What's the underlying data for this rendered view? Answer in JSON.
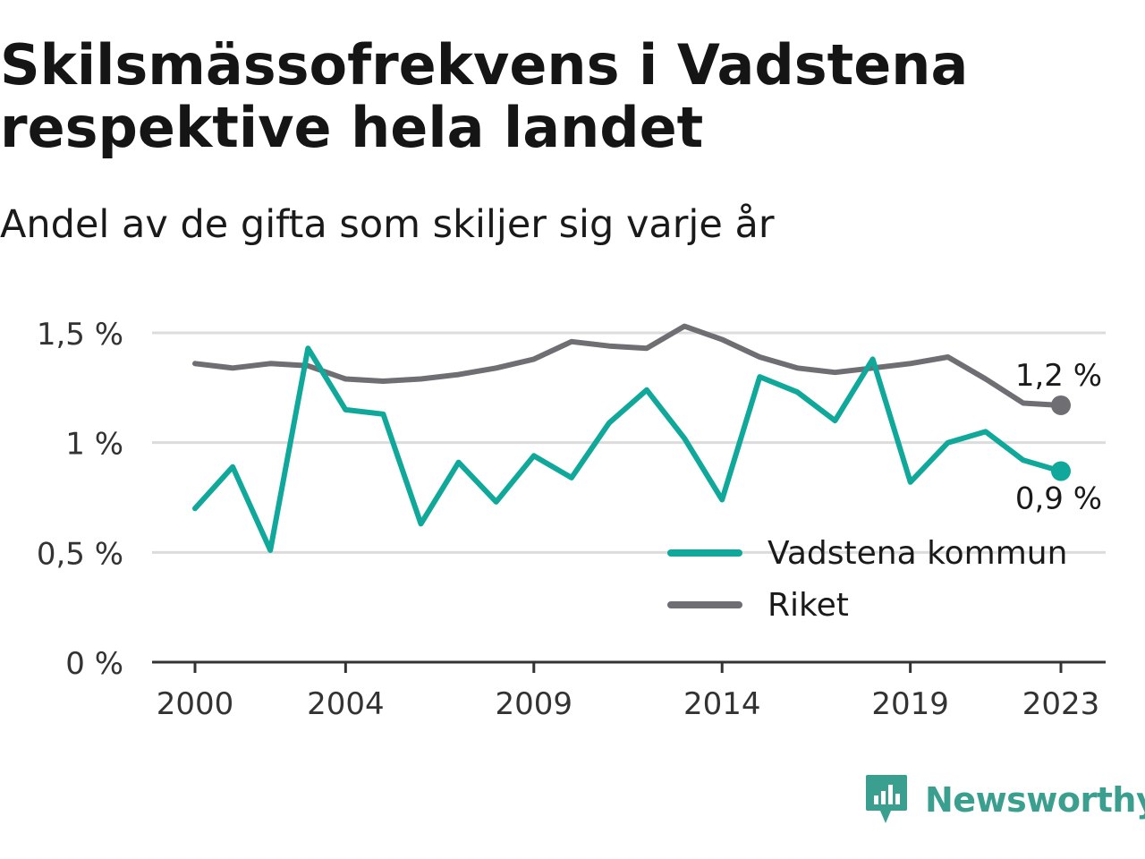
{
  "title": "Skilsmässofrekvens i Vadstena respektive hela landet",
  "subtitle": "Andel av de gifta som skiljer sig varje år",
  "brand": {
    "name": "Newsworthy",
    "icon": "newsworthy-logo-icon"
  },
  "colors": {
    "vadstena": "#0fa89a",
    "riket": "#6e6e73",
    "grid": "#dcdcdc",
    "axis": "#333333"
  },
  "chart_data": {
    "type": "line",
    "title": "Skilsmässofrekvens i Vadstena respektive hela landet",
    "subtitle": "Andel av de gifta som skiljer sig varje år",
    "xlabel": "",
    "ylabel": "",
    "ylim": [
      0,
      1.5
    ],
    "yticks": [
      0,
      0.5,
      1,
      1.5
    ],
    "ytick_labels": [
      "0 %",
      "0,5 %",
      "1 %",
      "1,5 %"
    ],
    "xlim": [
      2000,
      2023
    ],
    "xticks": [
      2000,
      2004,
      2009,
      2014,
      2019,
      2023
    ],
    "xtick_labels": [
      "2000",
      "2004",
      "2009",
      "2014",
      "2019",
      "2023"
    ],
    "grid": true,
    "legend_position": "bottom-right",
    "x": [
      2000,
      2001,
      2002,
      2003,
      2004,
      2005,
      2006,
      2007,
      2008,
      2009,
      2010,
      2011,
      2012,
      2013,
      2014,
      2015,
      2016,
      2017,
      2018,
      2019,
      2020,
      2021,
      2022,
      2023
    ],
    "series": [
      {
        "name": "Vadstena kommun",
        "color": "#0fa89a",
        "values": [
          0.7,
          0.89,
          0.51,
          1.43,
          1.15,
          1.13,
          0.63,
          0.91,
          0.73,
          0.94,
          0.84,
          1.09,
          1.24,
          1.02,
          0.74,
          1.3,
          1.23,
          1.1,
          1.38,
          0.82,
          1.0,
          1.05,
          0.92,
          0.87
        ],
        "end_label": "0,9 %"
      },
      {
        "name": "Riket",
        "color": "#6e6e73",
        "values": [
          1.36,
          1.34,
          1.36,
          1.35,
          1.29,
          1.28,
          1.29,
          1.31,
          1.34,
          1.38,
          1.46,
          1.44,
          1.43,
          1.53,
          1.47,
          1.39,
          1.34,
          1.32,
          1.34,
          1.36,
          1.39,
          1.29,
          1.18,
          1.17
        ],
        "end_label": "1,2 %"
      }
    ]
  }
}
